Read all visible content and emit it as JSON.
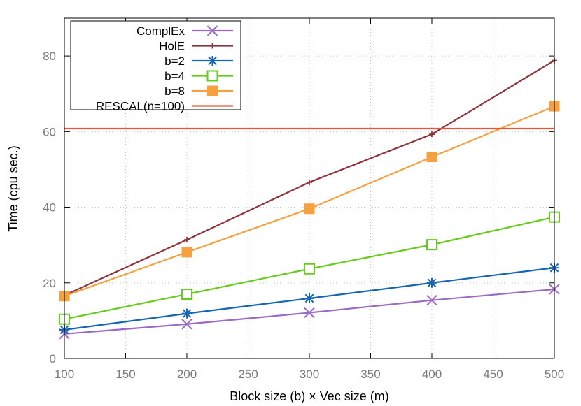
{
  "chart_data": {
    "type": "line",
    "xlabel": "Block size (b) × Vec size (m)",
    "ylabel": "Time (cpu sec.)",
    "xlim": [
      100,
      500
    ],
    "ylim": [
      0,
      90
    ],
    "x_ticks": [
      100,
      150,
      200,
      250,
      300,
      350,
      400,
      450,
      500
    ],
    "y_ticks": [
      0,
      20,
      40,
      60,
      80
    ],
    "grid": true,
    "legend_position": "top-left",
    "series": [
      {
        "name": "ComplEx",
        "color": "#9b6ac9",
        "marker": "x",
        "x": [
          100,
          200,
          300,
          400,
          500
        ],
        "values": [
          6.5,
          9.1,
          12.1,
          15.4,
          18.3
        ]
      },
      {
        "name": "HolE",
        "color": "#8e3339",
        "marker": "plus",
        "x": [
          100,
          200,
          300,
          400,
          500
        ],
        "values": [
          16.7,
          31.4,
          46.6,
          59.3,
          78.8
        ]
      },
      {
        "name": "b=2",
        "color": "#1565b5",
        "marker": "star",
        "x": [
          100,
          200,
          300,
          400,
          500
        ],
        "values": [
          7.6,
          11.9,
          15.9,
          20.0,
          24.0
        ]
      },
      {
        "name": "b=4",
        "color": "#66cc1a",
        "marker": "open-square",
        "x": [
          100,
          200,
          300,
          400,
          500
        ],
        "values": [
          10.4,
          17.0,
          23.7,
          30.1,
          37.4
        ]
      },
      {
        "name": "b=8",
        "color": "#f7a040",
        "marker": "filled-square",
        "x": [
          100,
          200,
          300,
          400,
          500
        ],
        "values": [
          16.5,
          28.1,
          39.6,
          53.3,
          66.7
        ]
      },
      {
        "name": "RESCAL(n=100)",
        "color": "#e8543a",
        "marker": "none",
        "x": [
          100,
          500
        ],
        "values": [
          60.8,
          60.8
        ],
        "horizontal": true
      }
    ]
  }
}
